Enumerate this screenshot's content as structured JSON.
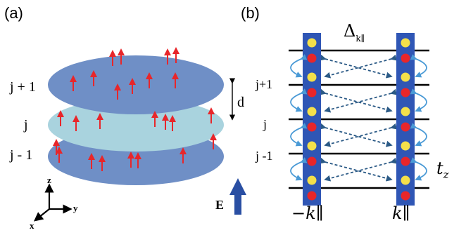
{
  "panels": {
    "a": "(a)",
    "b": "(b)"
  },
  "panel_a": {
    "layers": [
      "j + 1",
      "j",
      "j - 1"
    ],
    "spacing_label": "d",
    "axes": {
      "z": "z",
      "y": "y",
      "x": "x"
    },
    "field_label": "E",
    "colors": {
      "layer_dark": "#6f8fc6",
      "layer_light": "#a9d3de",
      "spin_arrow": "#e8262a",
      "field_arrow": "#2a4fa3"
    }
  },
  "panel_b": {
    "gap_label": "Δ",
    "gap_subscript": "k∥",
    "layers": [
      "j+1",
      "j",
      "j -1"
    ],
    "hopping_label": "t",
    "hopping_subscript": "z",
    "momentum_left": "−k∥",
    "momentum_right": "k∥",
    "colors": {
      "site_box": "#2f56b5",
      "dot_yellow": "#f4e04a",
      "dot_red": "#e8262a",
      "hop_arrow": "#4a9ad6",
      "dashed_arrow": "#2b5a86"
    }
  }
}
